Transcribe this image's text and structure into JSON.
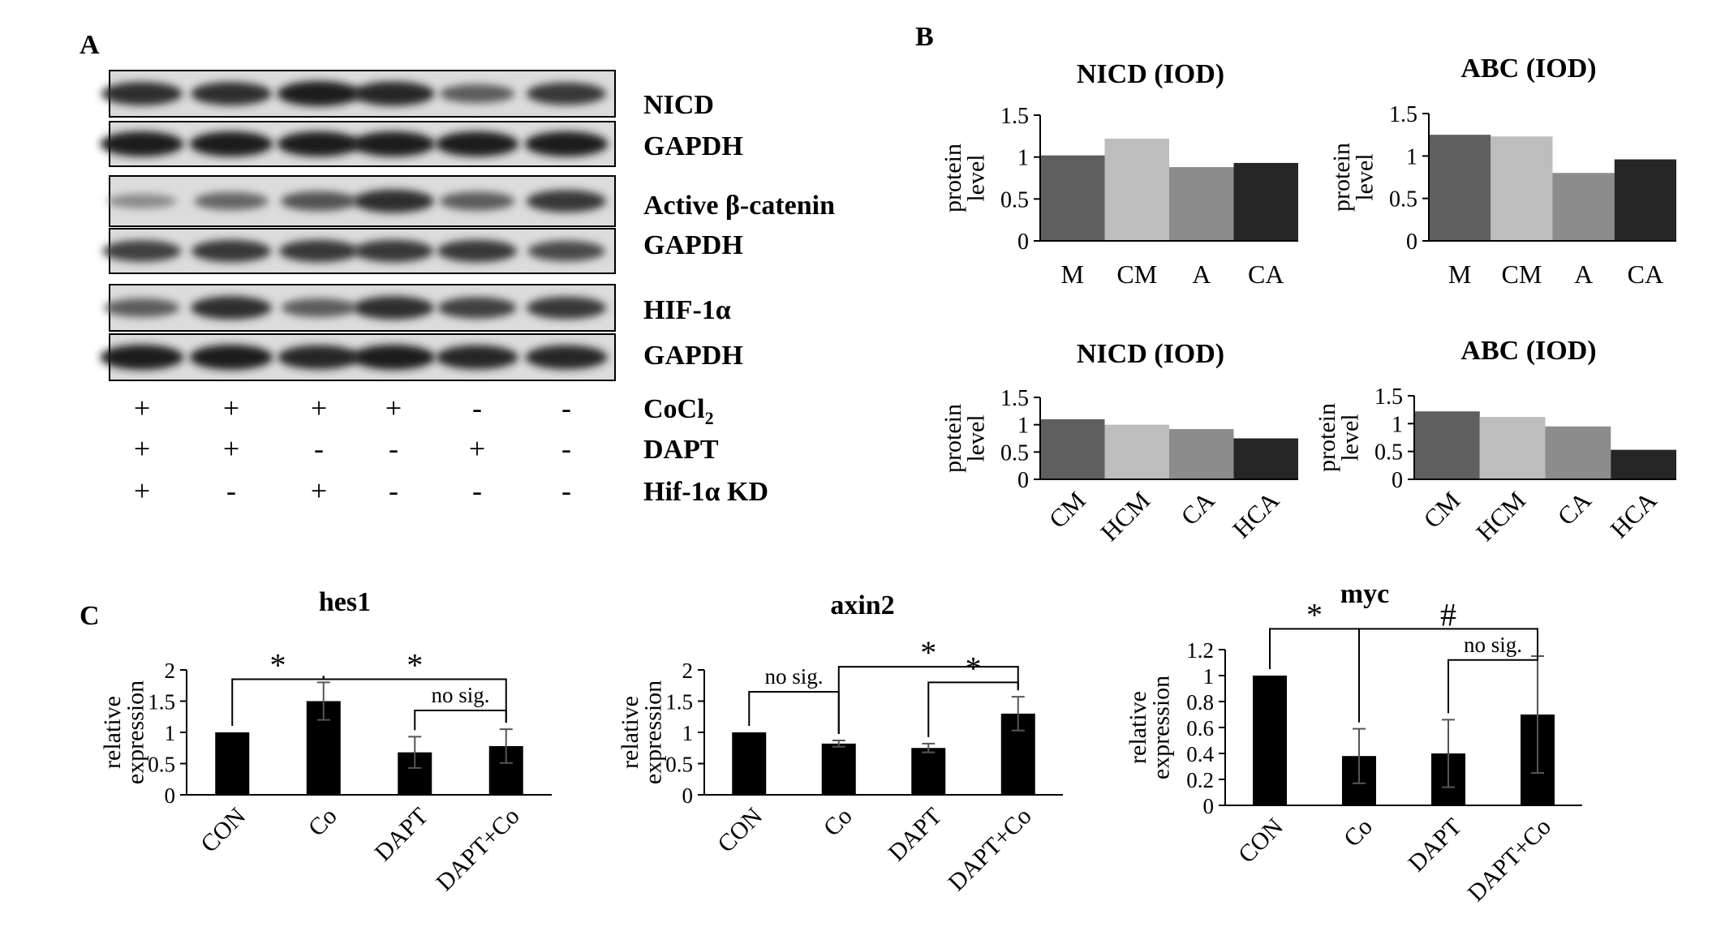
{
  "figure": {
    "panel_labels": [
      "A",
      "B",
      "C"
    ],
    "blot": {
      "rows": [
        {
          "label": "NICD",
          "intensity": [
            0.85,
            0.85,
            0.95,
            0.9,
            0.6,
            0.8
          ]
        },
        {
          "label": "GAPDH",
          "intensity": [
            0.95,
            0.95,
            0.95,
            0.95,
            0.95,
            0.95
          ]
        },
        {
          "label": "Active β-catenin",
          "intensity": [
            0.35,
            0.55,
            0.65,
            0.85,
            0.6,
            0.8
          ]
        },
        {
          "label": "GAPDH",
          "intensity": [
            0.75,
            0.8,
            0.8,
            0.8,
            0.8,
            0.7
          ]
        },
        {
          "label": "HIF-1α",
          "intensity": [
            0.6,
            0.85,
            0.6,
            0.85,
            0.75,
            0.8
          ]
        },
        {
          "label": "GAPDH",
          "intensity": [
            0.95,
            0.95,
            0.9,
            0.95,
            0.9,
            0.9
          ]
        }
      ],
      "conditions": [
        {
          "label": "CoCl",
          "subscript": "2",
          "signs": [
            "+",
            "+",
            "+",
            "+",
            "-",
            "-"
          ]
        },
        {
          "label": "DAPT",
          "subscript": "",
          "signs": [
            "+",
            "+",
            "-",
            "-",
            "+",
            "-"
          ]
        },
        {
          "label": "Hif-1α KD",
          "subscript": "",
          "signs": [
            "+",
            "-",
            "+",
            "-",
            "-",
            "-"
          ]
        }
      ]
    }
  },
  "chart_data": [
    {
      "id": "b1",
      "type": "bar",
      "title": "NICD (IOD)",
      "ylabel": "protein level",
      "categories": [
        "M",
        "CM",
        "A",
        "CA"
      ],
      "values": [
        1.02,
        1.22,
        0.88,
        0.93
      ],
      "colors": [
        "#5f5f5f",
        "#bdbdbd",
        "#8c8c8c",
        "#262626"
      ],
      "ylim": [
        0,
        1.5
      ],
      "yticks": [
        "0",
        "0.5",
        "1",
        "1.5"
      ],
      "rotate_labels": false
    },
    {
      "id": "b2",
      "type": "bar",
      "title": "ABC (IOD)",
      "ylabel": "protein level",
      "categories": [
        "M",
        "CM",
        "A",
        "CA"
      ],
      "values": [
        1.25,
        1.23,
        0.8,
        0.96
      ],
      "colors": [
        "#5f5f5f",
        "#bdbdbd",
        "#8c8c8c",
        "#262626"
      ],
      "ylim": [
        0,
        1.5
      ],
      "yticks": [
        "0",
        "0.5",
        "1",
        "1.5"
      ],
      "rotate_labels": false
    },
    {
      "id": "b3",
      "type": "bar",
      "title": "NICD (IOD)",
      "ylabel": "protein level",
      "categories": [
        "CM",
        "HCM",
        "CA",
        "HCA"
      ],
      "values": [
        1.1,
        1.0,
        0.92,
        0.75
      ],
      "colors": [
        "#5f5f5f",
        "#bdbdbd",
        "#8c8c8c",
        "#262626"
      ],
      "ylim": [
        0,
        1.5
      ],
      "yticks": [
        "0",
        "0.5",
        "1",
        "1.5"
      ],
      "rotate_labels": true
    },
    {
      "id": "b4",
      "type": "bar",
      "title": "ABC (IOD)",
      "ylabel": "protein level",
      "categories": [
        "CM",
        "HCM",
        "CA",
        "HCA"
      ],
      "values": [
        1.22,
        1.12,
        0.95,
        0.53
      ],
      "colors": [
        "#5f5f5f",
        "#bdbdbd",
        "#8c8c8c",
        "#262626"
      ],
      "ylim": [
        0,
        1.5
      ],
      "yticks": [
        "0",
        "0.5",
        "1",
        "1.5"
      ],
      "rotate_labels": true
    },
    {
      "id": "c1",
      "type": "bar",
      "title": "hes1",
      "ylabel": "relative expression",
      "categories": [
        "CON",
        "Co",
        "DAPT",
        "DAPT+Co"
      ],
      "values": [
        1.0,
        1.5,
        0.68,
        0.78
      ],
      "errors": [
        0.0,
        0.3,
        0.25,
        0.27
      ],
      "colors": [
        "#000000",
        "#000000",
        "#000000",
        "#000000"
      ],
      "ylim": [
        0,
        2
      ],
      "yticks": [
        "0",
        "0.5",
        "1",
        "1.5",
        "2"
      ],
      "rotate_labels": true,
      "significance": [
        {
          "from": 0,
          "to": 1,
          "y": 1.85,
          "label": "*"
        },
        {
          "from": 1,
          "to": 3,
          "y": 1.85,
          "label": "*"
        },
        {
          "from": 2,
          "to": 3,
          "y": 1.35,
          "label": "no sig."
        }
      ]
    },
    {
      "id": "c2",
      "type": "bar",
      "title": "axin2",
      "ylabel": "relative expression",
      "categories": [
        "CON",
        "Co",
        "DAPT",
        "DAPT+Co"
      ],
      "values": [
        1.0,
        0.82,
        0.75,
        1.3
      ],
      "errors": [
        0.0,
        0.05,
        0.07,
        0.27
      ],
      "colors": [
        "#000000",
        "#000000",
        "#000000",
        "#000000"
      ],
      "ylim": [
        0,
        2
      ],
      "yticks": [
        "0",
        "0.5",
        "1",
        "1.5",
        "2"
      ],
      "rotate_labels": true,
      "significance": [
        {
          "from": 0,
          "to": 1,
          "y": 1.65,
          "label": "no sig."
        },
        {
          "from": 1,
          "to": 3,
          "y": 2.05,
          "label": "*"
        },
        {
          "from": 2,
          "to": 3,
          "y": 1.8,
          "label": "*"
        }
      ]
    },
    {
      "id": "c3",
      "type": "bar",
      "title": "myc",
      "ylabel": "relative expression",
      "categories": [
        "CON",
        "Co",
        "DAPT",
        "DAPT+Co"
      ],
      "values": [
        1.0,
        0.38,
        0.4,
        0.7
      ],
      "errors": [
        0.0,
        0.21,
        0.26,
        0.45
      ],
      "colors": [
        "#000000",
        "#000000",
        "#000000",
        "#000000"
      ],
      "ylim": [
        0,
        1.2
      ],
      "yticks": [
        "0",
        "0.2",
        "0.4",
        "0.6",
        "0.8",
        "1",
        "1.2"
      ],
      "rotate_labels": true,
      "significance": [
        {
          "from": 0,
          "to": 1,
          "y": 1.36,
          "label": "*"
        },
        {
          "from": 1,
          "to": 3,
          "y": 1.36,
          "label": "#"
        },
        {
          "from": 2,
          "to": 3,
          "y": 1.12,
          "label": "no sig."
        }
      ]
    }
  ]
}
